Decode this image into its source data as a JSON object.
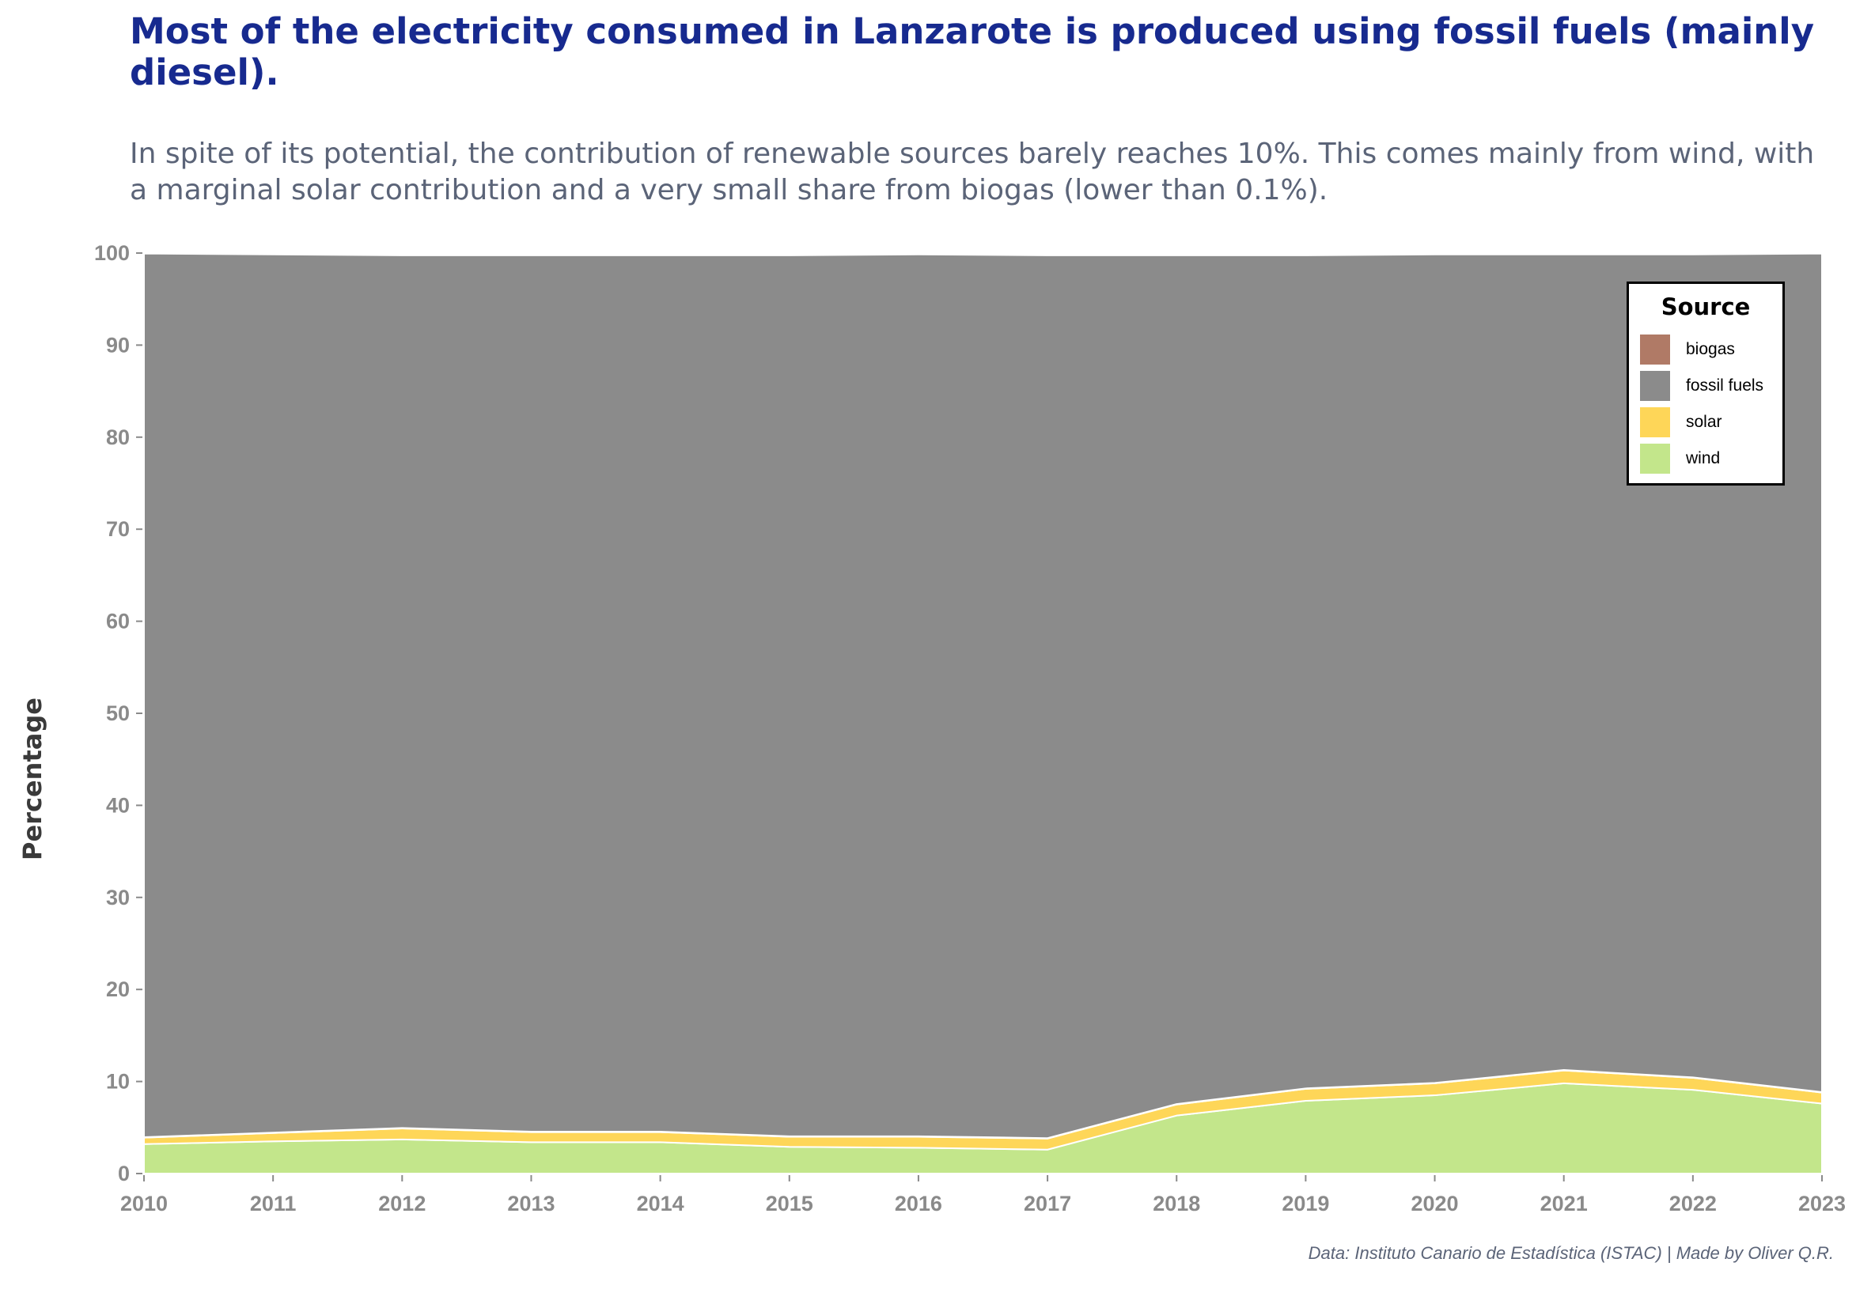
{
  "title": "Most of the electricity consumed in Lanzarote is produced using fossil fuels (mainly diesel).",
  "subtitle": "In spite of its potential, the contribution of renewable sources barely reaches 10%. This comes mainly from wind, with a marginal solar contribution and a very small share from biogas (lower than 0.1%).",
  "caption": "Data: Instituto Canario de Estadística (ISTAC) | Made by Oliver Q.R.",
  "colors": {
    "biogas": "#b07a66",
    "fossil_fuels": "#8b8b8b",
    "solar": "#fed658",
    "wind": "#c3e68b"
  },
  "legend": {
    "title": "Source",
    "items": [
      {
        "label": "biogas",
        "color": "#b07a66"
      },
      {
        "label": "fossil fuels",
        "color": "#8b8b8b"
      },
      {
        "label": "solar",
        "color": "#fed658"
      },
      {
        "label": "wind",
        "color": "#c3e68b"
      }
    ]
  },
  "chart_data": {
    "type": "area",
    "stacked": true,
    "title": "Most of the electricity consumed in Lanzarote is produced using fossil fuels (mainly diesel).",
    "xlabel": "",
    "ylabel": "Percentage",
    "x": [
      2010,
      2011,
      2012,
      2013,
      2014,
      2015,
      2016,
      2017,
      2018,
      2019,
      2020,
      2021,
      2022,
      2023
    ],
    "xticks": [
      "2010",
      "2011",
      "2012",
      "2013",
      "2014",
      "2015",
      "2016",
      "2017",
      "2018",
      "2019",
      "2020",
      "2021",
      "2022",
      "2023"
    ],
    "ylim": [
      0,
      100
    ],
    "yticks": [
      "0",
      "10",
      "20",
      "30",
      "40",
      "50",
      "60",
      "70",
      "80",
      "90",
      "100"
    ],
    "legend_position": "top-right",
    "grid": false,
    "series": [
      {
        "name": "wind",
        "values": [
          3.2,
          3.5,
          3.7,
          3.4,
          3.4,
          2.9,
          2.8,
          2.6,
          6.3,
          7.9,
          8.5,
          9.8,
          9.1,
          7.6
        ]
      },
      {
        "name": "solar",
        "values": [
          0.7,
          0.9,
          1.2,
          1.1,
          1.1,
          1.1,
          1.2,
          1.2,
          1.2,
          1.3,
          1.3,
          1.4,
          1.3,
          1.2
        ]
      },
      {
        "name": "biogas",
        "values": [
          0.05,
          0.05,
          0.05,
          0.05,
          0.05,
          0.05,
          0.05,
          0.05,
          0.05,
          0.05,
          0.05,
          0.05,
          0.05,
          0.05
        ]
      },
      {
        "name": "fossil fuels",
        "values": [
          96.0,
          95.4,
          94.8,
          95.2,
          95.2,
          95.7,
          95.8,
          95.9,
          92.2,
          90.5,
          90.0,
          88.6,
          89.4,
          91.1
        ]
      }
    ]
  }
}
